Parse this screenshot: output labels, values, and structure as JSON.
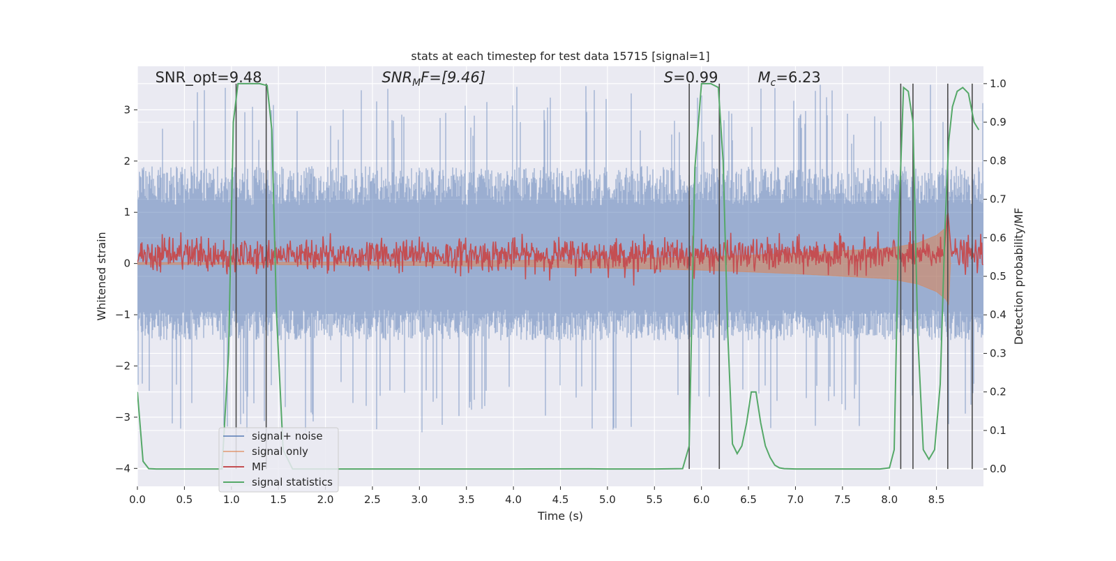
{
  "chart_data": {
    "type": "line",
    "title": "stats at each timestep for test data 15715 [signal=1]",
    "xlabel": "Time (s)",
    "ylabel_left": "Whitened strain",
    "ylabel_right": "Detection probability/MF",
    "xlim": [
      0.0,
      9.0
    ],
    "ylim_left": [
      -4.35,
      3.85
    ],
    "ylim_right": [
      -0.045,
      1.045
    ],
    "x_ticks": [
      "0.0",
      "0.5",
      "1.0",
      "1.5",
      "2.0",
      "2.5",
      "3.0",
      "3.5",
      "4.0",
      "4.5",
      "5.0",
      "5.5",
      "6.0",
      "6.5",
      "7.0",
      "7.5",
      "8.0",
      "8.5"
    ],
    "y_left_ticks": [
      "−4",
      "−3",
      "−2",
      "−1",
      "0",
      "1",
      "2",
      "3"
    ],
    "y_right_ticks": [
      "0.0",
      "0.1",
      "0.2",
      "0.3",
      "0.4",
      "0.5",
      "0.6",
      "0.7",
      "0.8",
      "0.9",
      "1.0"
    ],
    "grid": true,
    "legend_position": "lower-left",
    "annotations": {
      "snr_opt": "SNR_opt=9.48",
      "snr_mf_base": "SNR",
      "snr_mf_sub": "M",
      "snr_mf_rest": "F=[9.46]",
      "s_italic": "S",
      "s_rest": "=0.99",
      "mc_base": "M",
      "mc_sub": "c",
      "mc_rest": "=6.23"
    },
    "series": [
      {
        "name": "signal+ noise",
        "color": "#4c72b0",
        "axis": "left",
        "envelope_typical": [
          -1.5,
          1.9
        ],
        "envelope_extreme": [
          -3.3,
          3.5
        ]
      },
      {
        "name": "signal only",
        "color": "#dd8452",
        "axis": "left",
        "x": [
          0.0,
          1.0,
          2.0,
          3.0,
          4.0,
          5.0,
          6.0,
          7.0,
          7.5,
          8.0,
          8.3,
          8.5,
          8.6,
          8.63,
          8.65
        ],
        "amplitude": [
          0.02,
          0.02,
          0.03,
          0.04,
          0.06,
          0.09,
          0.13,
          0.2,
          0.25,
          0.3,
          0.4,
          0.55,
          0.7,
          0.8,
          0.0
        ]
      },
      {
        "name": "MF",
        "color": "#c44e52",
        "axis": "right",
        "baseline": 0.555,
        "noise": 0.035,
        "peak_x": 8.62,
        "peak_y": 0.67
      },
      {
        "name": "signal statistics",
        "color": "#55a868",
        "axis": "right",
        "x": [
          0.0,
          0.06,
          0.12,
          0.2,
          0.5,
          0.9,
          0.97,
          1.02,
          1.07,
          1.12,
          1.2,
          1.3,
          1.38,
          1.43,
          1.48,
          1.55,
          1.65,
          2.0,
          3.0,
          4.0,
          4.8,
          5.0,
          5.5,
          5.8,
          5.87,
          5.93,
          6.0,
          6.1,
          6.18,
          6.23,
          6.28,
          6.33,
          6.38,
          6.43,
          6.48,
          6.53,
          6.58,
          6.63,
          6.68,
          6.73,
          6.78,
          6.83,
          6.88,
          7.0,
          7.5,
          7.9,
          8.0,
          8.05,
          8.1,
          8.15,
          8.2,
          8.25,
          8.3,
          8.36,
          8.42,
          8.48,
          8.54,
          8.59,
          8.63,
          8.67,
          8.72,
          8.78,
          8.84,
          8.9,
          8.95
        ],
        "y": [
          0.2,
          0.02,
          0.001,
          0.0,
          0.0,
          0.0,
          0.3,
          0.9,
          1.0,
          1.0,
          1.0,
          1.0,
          0.995,
          0.88,
          0.4,
          0.05,
          0.0,
          0.0,
          0.0,
          0.0,
          0.0005,
          0.0,
          0.0,
          0.001,
          0.06,
          0.78,
          1.0,
          1.0,
          0.99,
          0.8,
          0.35,
          0.065,
          0.04,
          0.06,
          0.12,
          0.2,
          0.2,
          0.12,
          0.06,
          0.03,
          0.01,
          0.003,
          0.001,
          0.0,
          0.0,
          0.0,
          0.003,
          0.05,
          0.65,
          0.99,
          0.98,
          0.9,
          0.35,
          0.05,
          0.025,
          0.05,
          0.22,
          0.62,
          0.85,
          0.94,
          0.98,
          0.99,
          0.975,
          0.9,
          0.88
        ]
      }
    ],
    "vertical_lines": [
      1.05,
      1.37,
      5.87,
      6.19,
      8.12,
      8.25,
      8.62,
      8.88
    ]
  }
}
